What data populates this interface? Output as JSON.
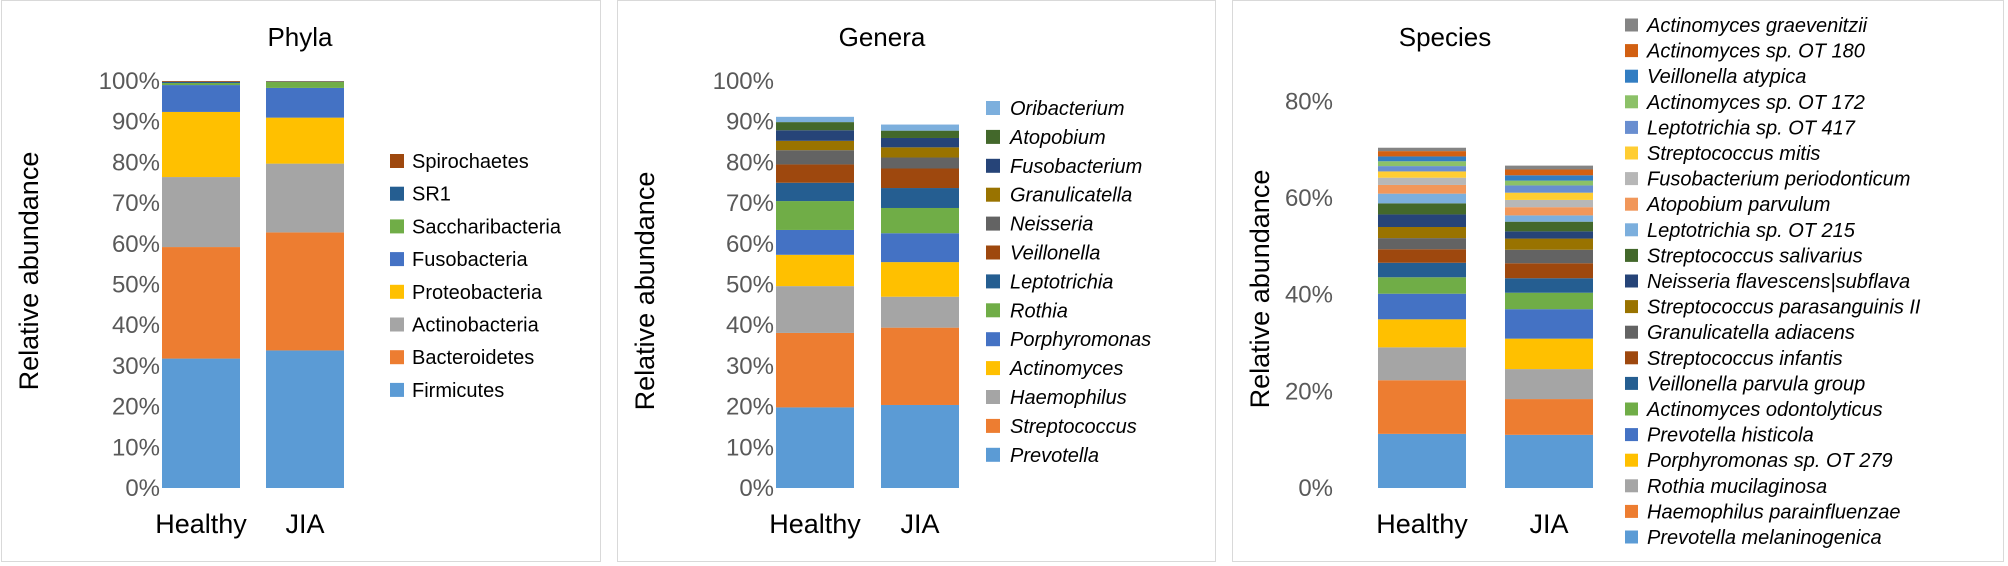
{
  "chart_data": [
    {
      "type": "bar",
      "stacked": true,
      "title": "Phyla",
      "ylabel": "Relative abundance",
      "xlabel": "",
      "categories": [
        "Healthy",
        "JIA"
      ],
      "ylim": [
        0,
        100
      ],
      "yticks": [
        "0%",
        "10%",
        "20%",
        "30%",
        "40%",
        "50%",
        "60%",
        "70%",
        "80%",
        "90%",
        "100%"
      ],
      "italic_legend": false,
      "series": [
        {
          "name": "Firmicutes",
          "color": "#5b9bd5",
          "values": [
            31.8,
            33.8
          ]
        },
        {
          "name": "Bacteroidetes",
          "color": "#ed7d31",
          "values": [
            27.4,
            29.0
          ]
        },
        {
          "name": "Actinobacteria",
          "color": "#a5a5a5",
          "values": [
            17.2,
            16.9
          ]
        },
        {
          "name": "Proteobacteria",
          "color": "#ffc000",
          "values": [
            16.0,
            11.3
          ]
        },
        {
          "name": "Fusobacteria",
          "color": "#4472c4",
          "values": [
            6.6,
            7.3
          ]
        },
        {
          "name": "Saccharibacteria",
          "color": "#70ad47",
          "values": [
            0.5,
            1.5
          ]
        },
        {
          "name": "SR1",
          "color": "#255e91",
          "values": [
            0.3,
            0.1
          ]
        },
        {
          "name": "Spirochaetes",
          "color": "#9e480e",
          "values": [
            0.2,
            0.1
          ]
        }
      ]
    },
    {
      "type": "bar",
      "stacked": true,
      "title": "Genera",
      "ylabel": "Relative abundance",
      "xlabel": "",
      "categories": [
        "Healthy",
        "JIA"
      ],
      "ylim": [
        0,
        100
      ],
      "yticks": [
        "0%",
        "10%",
        "20%",
        "30%",
        "40%",
        "50%",
        "60%",
        "70%",
        "80%",
        "90%",
        "100%"
      ],
      "italic_legend": true,
      "series": [
        {
          "name": "Prevotella",
          "color": "#5b9bd5",
          "values": [
            19.8,
            20.4
          ]
        },
        {
          "name": "Streptococcus",
          "color": "#ed7d31",
          "values": [
            18.3,
            19.0
          ]
        },
        {
          "name": "Haemophilus",
          "color": "#a5a5a5",
          "values": [
            11.5,
            7.6
          ]
        },
        {
          "name": "Actinomyces",
          "color": "#ffc000",
          "values": [
            7.7,
            8.5
          ]
        },
        {
          "name": "Porphyromonas",
          "color": "#4472c4",
          "values": [
            6.1,
            7.1
          ]
        },
        {
          "name": "Rothia",
          "color": "#70ad47",
          "values": [
            7.1,
            6.2
          ]
        },
        {
          "name": "Leptotrichia",
          "color": "#255e91",
          "values": [
            4.5,
            4.9
          ]
        },
        {
          "name": "Veillonella",
          "color": "#9e480e",
          "values": [
            4.5,
            4.8
          ]
        },
        {
          "name": "Neisseria",
          "color": "#636363",
          "values": [
            3.5,
            2.7
          ]
        },
        {
          "name": "Granulicatella",
          "color": "#997300",
          "values": [
            2.3,
            2.5
          ]
        },
        {
          "name": "Fusobacterium",
          "color": "#264478",
          "values": [
            2.6,
            2.3
          ]
        },
        {
          "name": "Atopobium",
          "color": "#43682b",
          "values": [
            2.0,
            1.8
          ]
        },
        {
          "name": "Oribacterium",
          "color": "#7cafdd",
          "values": [
            1.3,
            1.5
          ]
        }
      ]
    },
    {
      "type": "bar",
      "stacked": true,
      "title": "Species",
      "ylabel": "Relative abundance",
      "xlabel": "",
      "categories": [
        "Healthy",
        "JIA"
      ],
      "ylim": [
        0,
        90
      ],
      "yticks": [
        "0%",
        "20%",
        "40%",
        "60%",
        "80%"
      ],
      "italic_legend": true,
      "series": [
        {
          "name": "Prevotella melaninogenica",
          "color": "#5b9bd5",
          "values": [
            11.2,
            11.0
          ]
        },
        {
          "name": "Haemophilus parainfluenzae",
          "color": "#ed7d31",
          "values": [
            11.1,
            7.4
          ]
        },
        {
          "name": "Rothia mucilaginosa",
          "color": "#a5a5a5",
          "values": [
            6.8,
            6.2
          ]
        },
        {
          "name": "Porphyromonas sp. OT 279",
          "color": "#ffc000",
          "values": [
            5.8,
            6.3
          ]
        },
        {
          "name": "Prevotella histicola",
          "color": "#4472c4",
          "values": [
            5.3,
            6.1
          ]
        },
        {
          "name": "Actinomyces odontolyticus",
          "color": "#70ad47",
          "values": [
            3.4,
            3.4
          ]
        },
        {
          "name": "Veillonella parvula group",
          "color": "#255e91",
          "values": [
            3.0,
            3.0
          ]
        },
        {
          "name": "Streptococcus infantis",
          "color": "#9e480e",
          "values": [
            2.8,
            3.1
          ]
        },
        {
          "name": "Granulicatella adiacens",
          "color": "#636363",
          "values": [
            2.3,
            2.8
          ]
        },
        {
          "name": "Streptococcus parasanguinis II",
          "color": "#997300",
          "values": [
            2.3,
            2.3
          ]
        },
        {
          "name": "Neisseria flavescens|subflava",
          "color": "#264478",
          "values": [
            2.6,
            1.5
          ]
        },
        {
          "name": "Streptococcus salivarius",
          "color": "#43682b",
          "values": [
            2.3,
            2.0
          ]
        },
        {
          "name": "Leptotrichia sp. OT 215",
          "color": "#7cafdd",
          "values": [
            2.0,
            1.3
          ]
        },
        {
          "name": "Atopobium parvulum",
          "color": "#f1975a",
          "values": [
            1.8,
            1.7
          ]
        },
        {
          "name": "Fusobacterium periodonticum",
          "color": "#b7b7b7",
          "values": [
            1.5,
            1.5
          ]
        },
        {
          "name": "Streptococcus mitis",
          "color": "#ffcd33",
          "values": [
            1.3,
            1.5
          ]
        },
        {
          "name": "Leptotrichia sp. OT 417",
          "color": "#698ed0",
          "values": [
            1.1,
            1.5
          ]
        },
        {
          "name": "Actinomyces sp. OT 172",
          "color": "#8cc168",
          "values": [
            1.0,
            1.0
          ]
        },
        {
          "name": "Veillonella atypica",
          "color": "#327dc2",
          "values": [
            1.0,
            1.1
          ]
        },
        {
          "name": "Actinomyces sp. OT 180",
          "color": "#d26012",
          "values": [
            1.1,
            1.2
          ]
        },
        {
          "name": "Actinomyces graevenitzii",
          "color": "#848484",
          "values": [
            0.7,
            0.8
          ]
        }
      ]
    }
  ]
}
